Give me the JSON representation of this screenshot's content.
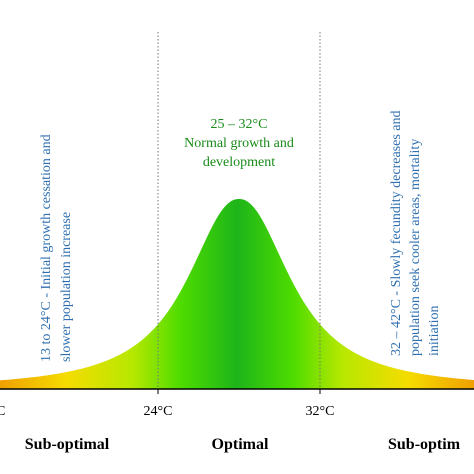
{
  "colors": {
    "center_green": "#1fb81a",
    "mid_green": "#66e800",
    "yellow": "#f7e000",
    "orange": "#f0a000",
    "blue_text": "#2f6fb0",
    "green_text": "#1a8a1a",
    "axis": "#000000",
    "divider": "#777777"
  },
  "diagram": {
    "zones": [
      {
        "id": "left",
        "range": "13 to 24°C",
        "description": "Initial growth cessation and slower population increase",
        "label": "13 to 24°C - Initial growth cessation and",
        "label2": "slower population increase"
      },
      {
        "id": "center",
        "range": "25 – 32°C",
        "description": "Normal growth and development"
      },
      {
        "id": "right",
        "range": "32 – 42°C",
        "label": "32 – 42°C - Slowly fecundity decreases and",
        "label2": "population seek cooler areas, mortality",
        "label3": "initiation"
      }
    ],
    "center_line1": "25 – 32°C",
    "center_line2": "Normal growth and",
    "center_line3": "development",
    "ticks": {
      "left_partial": "C",
      "t24": "24°C",
      "t32": "32°C"
    },
    "bottom": {
      "left": "Sub-optimal",
      "center": "Optimal",
      "right": "Sub-optim"
    }
  }
}
